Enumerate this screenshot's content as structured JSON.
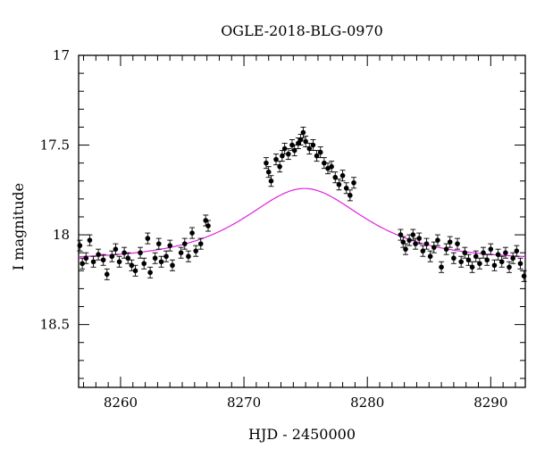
{
  "chart_data": {
    "type": "scatter",
    "title": "OGLE-2018-BLG-0970",
    "xlabel": "HJD - 2450000",
    "ylabel": "I magnitude",
    "xlim": [
      8256.6,
      8292.8
    ],
    "ylim": [
      18.85,
      17.0
    ],
    "y_inverted": true,
    "grid": false,
    "x_ticks": [
      8260,
      8270,
      8280,
      8290
    ],
    "y_ticks": [
      17,
      17.5,
      18,
      18.5
    ],
    "x_tick_labels": [
      "8260",
      "8270",
      "8280",
      "8290"
    ],
    "y_tick_labels": [
      "17",
      "17.5",
      "18",
      "18.5"
    ],
    "series": [
      {
        "type": "scatter",
        "color": "#000000",
        "points": [
          [
            8256.7,
            18.06,
            0.03
          ],
          [
            8256.9,
            18.16,
            0.03
          ],
          [
            8257.2,
            18.13,
            0.03
          ],
          [
            8257.5,
            18.03,
            0.03
          ],
          [
            8257.8,
            18.15,
            0.03
          ],
          [
            8258.2,
            18.11,
            0.03
          ],
          [
            8258.6,
            18.14,
            0.03
          ],
          [
            8258.9,
            18.22,
            0.03
          ],
          [
            8259.3,
            18.12,
            0.03
          ],
          [
            8259.6,
            18.08,
            0.03
          ],
          [
            8259.9,
            18.15,
            0.03
          ],
          [
            8260.3,
            18.1,
            0.03
          ],
          [
            8260.6,
            18.13,
            0.03
          ],
          [
            8260.9,
            18.17,
            0.03
          ],
          [
            8261.2,
            18.2,
            0.03
          ],
          [
            8261.6,
            18.1,
            0.03
          ],
          [
            8261.9,
            18.16,
            0.03
          ],
          [
            8262.2,
            18.02,
            0.03
          ],
          [
            8262.4,
            18.21,
            0.03
          ],
          [
            8262.8,
            18.13,
            0.03
          ],
          [
            8263.1,
            18.05,
            0.03
          ],
          [
            8263.3,
            18.15,
            0.03
          ],
          [
            8263.7,
            18.12,
            0.03
          ],
          [
            8264.0,
            18.06,
            0.03
          ],
          [
            8264.2,
            18.17,
            0.03
          ],
          [
            8264.9,
            18.1,
            0.03
          ],
          [
            8265.2,
            18.05,
            0.03
          ],
          [
            8265.5,
            18.12,
            0.03
          ],
          [
            8265.8,
            17.99,
            0.03
          ],
          [
            8266.1,
            18.09,
            0.03
          ],
          [
            8266.5,
            18.05,
            0.03
          ],
          [
            8266.9,
            17.92,
            0.03
          ],
          [
            8267.1,
            17.95,
            0.03
          ],
          [
            8271.8,
            17.6,
            0.03
          ],
          [
            8272.0,
            17.65,
            0.03
          ],
          [
            8272.2,
            17.7,
            0.03
          ],
          [
            8272.6,
            17.58,
            0.03
          ],
          [
            8272.9,
            17.62,
            0.03
          ],
          [
            8273.1,
            17.56,
            0.03
          ],
          [
            8273.3,
            17.52,
            0.03
          ],
          [
            8273.6,
            17.55,
            0.03
          ],
          [
            8273.9,
            17.5,
            0.03
          ],
          [
            8274.1,
            17.53,
            0.03
          ],
          [
            8274.4,
            17.49,
            0.03
          ],
          [
            8274.6,
            17.47,
            0.03
          ],
          [
            8274.8,
            17.43,
            0.03
          ],
          [
            8275.0,
            17.48,
            0.03
          ],
          [
            8275.3,
            17.52,
            0.03
          ],
          [
            8275.6,
            17.5,
            0.03
          ],
          [
            8275.9,
            17.56,
            0.03
          ],
          [
            8276.2,
            17.54,
            0.03
          ],
          [
            8276.5,
            17.6,
            0.03
          ],
          [
            8276.8,
            17.63,
            0.03
          ],
          [
            8277.1,
            17.62,
            0.03
          ],
          [
            8277.4,
            17.68,
            0.03
          ],
          [
            8277.7,
            17.72,
            0.03
          ],
          [
            8278.0,
            17.67,
            0.03
          ],
          [
            8278.3,
            17.74,
            0.03
          ],
          [
            8278.6,
            17.78,
            0.03
          ],
          [
            8278.9,
            17.71,
            0.03
          ],
          [
            8282.7,
            18.0,
            0.03
          ],
          [
            8282.9,
            18.04,
            0.03
          ],
          [
            8283.1,
            18.08,
            0.03
          ],
          [
            8283.4,
            18.03,
            0.03
          ],
          [
            8283.7,
            18.0,
            0.03
          ],
          [
            8283.9,
            18.05,
            0.03
          ],
          [
            8284.2,
            18.02,
            0.03
          ],
          [
            8284.5,
            18.09,
            0.03
          ],
          [
            8284.8,
            18.05,
            0.03
          ],
          [
            8285.1,
            18.12,
            0.03
          ],
          [
            8285.4,
            18.07,
            0.03
          ],
          [
            8285.7,
            18.03,
            0.03
          ],
          [
            8286.0,
            18.18,
            0.03
          ],
          [
            8286.4,
            18.08,
            0.03
          ],
          [
            8286.7,
            18.04,
            0.03
          ],
          [
            8287.0,
            18.13,
            0.03
          ],
          [
            8287.3,
            18.05,
            0.03
          ],
          [
            8287.6,
            18.15,
            0.03
          ],
          [
            8287.9,
            18.1,
            0.03
          ],
          [
            8288.2,
            18.14,
            0.03
          ],
          [
            8288.5,
            18.18,
            0.03
          ],
          [
            8288.8,
            18.12,
            0.03
          ],
          [
            8289.1,
            18.16,
            0.03
          ],
          [
            8289.4,
            18.1,
            0.03
          ],
          [
            8289.7,
            18.14,
            0.03
          ],
          [
            8290.0,
            18.08,
            0.03
          ],
          [
            8290.3,
            18.17,
            0.03
          ],
          [
            8290.6,
            18.11,
            0.03
          ],
          [
            8290.9,
            18.15,
            0.03
          ],
          [
            8291.2,
            18.1,
            0.03
          ],
          [
            8291.5,
            18.18,
            0.03
          ],
          [
            8291.8,
            18.13,
            0.03
          ],
          [
            8292.1,
            18.09,
            0.03
          ],
          [
            8292.4,
            18.16,
            0.03
          ],
          [
            8292.7,
            18.23,
            0.03
          ]
        ]
      },
      {
        "type": "line",
        "color": "#e020e0",
        "model": {
          "t0": 8274.9,
          "tE": 6.3,
          "u0": 0.88,
          "baseline_mag": 18.14
        }
      }
    ]
  }
}
